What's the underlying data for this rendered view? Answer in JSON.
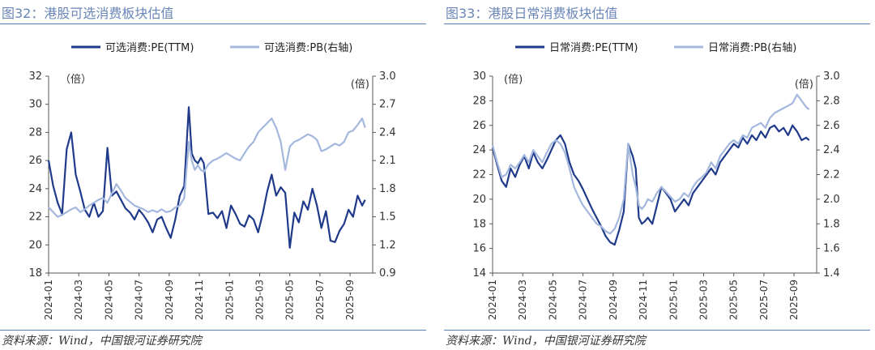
{
  "source_text": "资料来源：Wind，中国银河证券研究院",
  "chart_data": [
    {
      "type": "line",
      "title": "图32：港股可选消费板块估值",
      "left_unit": "（倍）",
      "right_unit": "(倍)",
      "x_ticks": [
        "2024-01",
        "2024-03",
        "2024-05",
        "2024-07",
        "2024-09",
        "2024-11",
        "2025-01",
        "2025-03",
        "2025-05",
        "2025-07",
        "2025-09"
      ],
      "left_axis": {
        "ticks": [
          18,
          20,
          22,
          24,
          26,
          28,
          30,
          32
        ],
        "range": [
          18,
          32
        ]
      },
      "right_axis": {
        "ticks": [
          "0.9",
          "1.2",
          "1.5",
          "1.8",
          "2.1",
          "2.4",
          "2.7",
          "3.0"
        ],
        "range": [
          0.9,
          3.0
        ]
      },
      "series": [
        {
          "name": "可选消费:PE(TTM)",
          "axis": "left",
          "color": "#1f3a8a",
          "x": [
            0,
            0.3,
            0.6,
            0.9,
            1.2,
            1.5,
            1.8,
            2.1,
            2.4,
            2.7,
            3.0,
            3.3,
            3.6,
            3.9,
            4.2,
            4.5,
            4.8,
            5.1,
            5.4,
            5.7,
            6.0,
            6.3,
            6.6,
            6.9,
            7.2,
            7.5,
            7.8,
            8.1,
            8.4,
            8.7,
            9.0,
            9.3,
            9.5,
            9.7,
            9.9,
            10.1,
            10.3,
            10.6,
            10.9,
            11.2,
            11.5,
            11.8,
            12.1,
            12.4,
            12.7,
            13.0,
            13.3,
            13.6,
            13.9,
            14.2,
            14.5,
            14.8,
            15.1,
            15.4,
            15.7,
            16.0,
            16.3,
            16.6,
            16.9,
            17.2,
            17.5,
            17.8,
            18.1,
            18.4,
            18.7,
            19.0,
            19.3,
            19.6,
            19.9,
            20.2,
            20.5,
            20.8,
            21.0
          ],
          "y": [
            26.0,
            24.2,
            23.0,
            22.2,
            26.8,
            28.0,
            25.0,
            23.8,
            22.5,
            22.0,
            23.0,
            22.0,
            22.4,
            26.9,
            23.5,
            23.8,
            23.2,
            22.6,
            22.3,
            21.8,
            22.5,
            22.1,
            21.6,
            20.9,
            21.8,
            22.0,
            21.2,
            20.5,
            21.8,
            23.5,
            24.2,
            29.8,
            26.5,
            26.0,
            25.8,
            26.2,
            25.8,
            22.2,
            22.3,
            21.9,
            22.4,
            21.2,
            22.8,
            22.2,
            21.5,
            21.3,
            22.1,
            21.8,
            20.9,
            22.2,
            23.8,
            25.0,
            23.5,
            24.1,
            23.7,
            19.8,
            22.3,
            21.6,
            23.1,
            22.5,
            24.0,
            22.8,
            21.2,
            22.4,
            20.3,
            20.2,
            21.0,
            21.5,
            22.5,
            22.0,
            23.5,
            22.8,
            23.2
          ]
        },
        {
          "name": "可选消费:PB(右轴)",
          "axis": "right",
          "color": "#a4b8de",
          "x": [
            0,
            0.3,
            0.6,
            0.9,
            1.2,
            1.5,
            1.8,
            2.1,
            2.4,
            2.7,
            3.0,
            3.3,
            3.6,
            3.9,
            4.2,
            4.5,
            4.8,
            5.1,
            5.4,
            5.7,
            6.0,
            6.3,
            6.6,
            6.9,
            7.2,
            7.5,
            7.8,
            8.1,
            8.4,
            8.7,
            9.0,
            9.3,
            9.5,
            9.7,
            9.9,
            10.1,
            10.3,
            10.6,
            10.9,
            11.2,
            11.5,
            11.8,
            12.1,
            12.4,
            12.7,
            13.0,
            13.3,
            13.6,
            13.9,
            14.2,
            14.5,
            14.8,
            15.1,
            15.4,
            15.7,
            16.0,
            16.3,
            16.6,
            16.9,
            17.2,
            17.5,
            17.8,
            18.1,
            18.4,
            18.7,
            19.0,
            19.3,
            19.6,
            19.9,
            20.2,
            20.5,
            20.8,
            21.0
          ],
          "y": [
            1.6,
            1.55,
            1.5,
            1.52,
            1.55,
            1.58,
            1.6,
            1.55,
            1.58,
            1.62,
            1.65,
            1.68,
            1.7,
            1.65,
            1.75,
            1.85,
            1.78,
            1.7,
            1.66,
            1.62,
            1.6,
            1.58,
            1.55,
            1.57,
            1.55,
            1.58,
            1.55,
            1.56,
            1.6,
            1.62,
            1.7,
            2.3,
            2.1,
            2.0,
            2.05,
            2.0,
            1.98,
            2.06,
            2.1,
            2.12,
            2.15,
            2.18,
            2.15,
            2.12,
            2.1,
            2.18,
            2.25,
            2.3,
            2.4,
            2.45,
            2.5,
            2.55,
            2.45,
            2.3,
            2.0,
            2.25,
            2.3,
            2.32,
            2.35,
            2.38,
            2.36,
            2.32,
            2.2,
            2.22,
            2.25,
            2.28,
            2.26,
            2.3,
            2.4,
            2.42,
            2.48,
            2.55,
            2.45
          ]
        }
      ]
    },
    {
      "type": "line",
      "title": "图33：港股日常消费板块估值",
      "left_unit": "(倍)",
      "right_unit": "(倍)",
      "x_ticks": [
        "2024-01",
        "2024-03",
        "2024-05",
        "2024-07",
        "2024-09",
        "2024-11",
        "2025-01",
        "2025-03",
        "2025-05",
        "2025-07",
        "2025-09"
      ],
      "left_axis": {
        "ticks": [
          14,
          16,
          18,
          20,
          22,
          24,
          26,
          28,
          30
        ],
        "range": [
          14,
          30
        ]
      },
      "right_axis": {
        "ticks": [
          "1.4",
          "1.6",
          "1.8",
          "2.0",
          "2.2",
          "2.4",
          "2.6",
          "2.8",
          "3.0"
        ],
        "range": [
          1.4,
          3.0
        ]
      },
      "series": [
        {
          "name": "日常消费:PE(TTM)",
          "axis": "left",
          "color": "#1f3a8a",
          "x": [
            0,
            0.3,
            0.6,
            0.9,
            1.2,
            1.5,
            1.8,
            2.1,
            2.4,
            2.7,
            3.0,
            3.3,
            3.6,
            3.9,
            4.2,
            4.5,
            4.8,
            5.1,
            5.4,
            5.7,
            6.0,
            6.3,
            6.6,
            6.9,
            7.2,
            7.5,
            7.8,
            8.1,
            8.4,
            8.7,
            9.0,
            9.3,
            9.5,
            9.7,
            9.9,
            10.1,
            10.3,
            10.6,
            10.9,
            11.2,
            11.5,
            11.8,
            12.1,
            12.4,
            12.7,
            13.0,
            13.3,
            13.6,
            13.9,
            14.2,
            14.5,
            14.8,
            15.1,
            15.4,
            15.7,
            16.0,
            16.3,
            16.6,
            16.9,
            17.2,
            17.5,
            17.8,
            18.1,
            18.4,
            18.7,
            19.0,
            19.3,
            19.6,
            19.9,
            20.2,
            20.5,
            20.8,
            21.0
          ],
          "y": [
            24.2,
            22.8,
            21.5,
            21.0,
            22.5,
            21.8,
            22.8,
            23.5,
            22.5,
            23.8,
            23.0,
            22.5,
            23.2,
            24.0,
            24.8,
            25.2,
            24.5,
            23.0,
            22.0,
            21.5,
            20.8,
            20.0,
            19.2,
            18.5,
            17.8,
            17.0,
            16.5,
            16.3,
            17.5,
            19.0,
            24.5,
            23.5,
            22.5,
            18.5,
            18.0,
            18.2,
            18.5,
            18.0,
            19.5,
            21.0,
            20.5,
            20.0,
            19.0,
            19.5,
            20.0,
            19.5,
            20.5,
            21.0,
            21.5,
            22.0,
            22.5,
            22.0,
            23.0,
            23.5,
            24.0,
            24.5,
            24.2,
            25.0,
            24.5,
            25.2,
            24.8,
            25.5,
            25.0,
            25.8,
            26.0,
            25.5,
            25.8,
            25.2,
            26.0,
            25.5,
            24.8,
            25.0,
            24.8
          ]
        },
        {
          "name": "日常消费:PB(右轴)",
          "axis": "right",
          "color": "#a4b8de",
          "x": [
            0,
            0.3,
            0.6,
            0.9,
            1.2,
            1.5,
            1.8,
            2.1,
            2.4,
            2.7,
            3.0,
            3.3,
            3.6,
            3.9,
            4.2,
            4.5,
            4.8,
            5.1,
            5.4,
            5.7,
            6.0,
            6.3,
            6.6,
            6.9,
            7.2,
            7.5,
            7.8,
            8.1,
            8.4,
            8.7,
            9.0,
            9.3,
            9.5,
            9.7,
            9.9,
            10.1,
            10.3,
            10.6,
            10.9,
            11.2,
            11.5,
            11.8,
            12.1,
            12.4,
            12.7,
            13.0,
            13.3,
            13.6,
            13.9,
            14.2,
            14.5,
            14.8,
            15.1,
            15.4,
            15.7,
            16.0,
            16.3,
            16.6,
            16.9,
            17.2,
            17.5,
            17.8,
            18.1,
            18.4,
            18.7,
            19.0,
            19.3,
            19.6,
            19.9,
            20.2,
            20.5,
            20.8,
            21.0
          ],
          "y": [
            2.44,
            2.3,
            2.18,
            2.2,
            2.28,
            2.25,
            2.3,
            2.36,
            2.3,
            2.4,
            2.35,
            2.3,
            2.38,
            2.45,
            2.48,
            2.45,
            2.38,
            2.25,
            2.1,
            2.02,
            1.95,
            1.9,
            1.85,
            1.8,
            1.78,
            1.74,
            1.72,
            1.76,
            1.85,
            2.0,
            2.45,
            2.2,
            2.1,
            1.95,
            1.92,
            1.95,
            2.0,
            1.98,
            2.05,
            2.1,
            2.06,
            2.02,
            1.98,
            2.0,
            2.05,
            2.02,
            2.1,
            2.15,
            2.18,
            2.22,
            2.3,
            2.25,
            2.35,
            2.4,
            2.45,
            2.48,
            2.45,
            2.52,
            2.5,
            2.58,
            2.6,
            2.62,
            2.58,
            2.66,
            2.7,
            2.72,
            2.74,
            2.76,
            2.78,
            2.85,
            2.8,
            2.75,
            2.73
          ]
        }
      ]
    }
  ]
}
